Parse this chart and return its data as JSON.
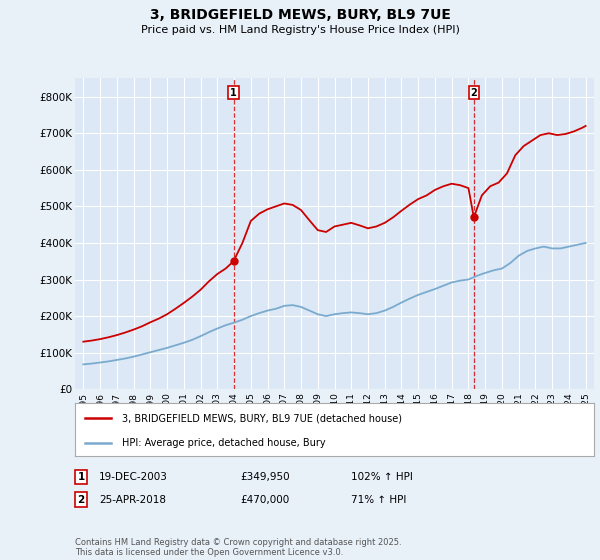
{
  "title": "3, BRIDGEFIELD MEWS, BURY, BL9 7UE",
  "subtitle": "Price paid vs. HM Land Registry's House Price Index (HPI)",
  "background_color": "#e8f0f8",
  "plot_background_color": "#dce8f5",
  "ylim": [
    0,
    850000
  ],
  "yticks": [
    0,
    100000,
    200000,
    300000,
    400000,
    500000,
    600000,
    700000,
    800000
  ],
  "ytick_labels": [
    "£0",
    "£100K",
    "£200K",
    "£300K",
    "£400K",
    "£500K",
    "£600K",
    "£700K",
    "£800K"
  ],
  "red_line_color": "#cc0000",
  "blue_line_color": "#7aabcf",
  "sale1_x": 2003.97,
  "sale1_y": 349950,
  "sale1_label": "1",
  "sale2_x": 2018.32,
  "sale2_y": 470000,
  "sale2_label": "2",
  "legend_red_label": "3, BRIDGEFIELD MEWS, BURY, BL9 7UE (detached house)",
  "legend_blue_label": "HPI: Average price, detached house, Bury",
  "table_entries": [
    {
      "num": "1",
      "date": "19-DEC-2003",
      "price": "£349,950",
      "hpi": "102% ↑ HPI"
    },
    {
      "num": "2",
      "date": "25-APR-2018",
      "price": "£470,000",
      "hpi": "71% ↑ HPI"
    }
  ],
  "footer": "Contains HM Land Registry data © Crown copyright and database right 2025.\nThis data is licensed under the Open Government Licence v3.0.",
  "red_x": [
    1995.0,
    1995.5,
    1996.0,
    1996.5,
    1997.0,
    1997.5,
    1998.0,
    1998.5,
    1999.0,
    1999.5,
    2000.0,
    2000.5,
    2001.0,
    2001.5,
    2002.0,
    2002.5,
    2003.0,
    2003.5,
    2003.97,
    2004.5,
    2005.0,
    2005.5,
    2006.0,
    2006.5,
    2007.0,
    2007.5,
    2008.0,
    2008.5,
    2009.0,
    2009.5,
    2010.0,
    2010.5,
    2011.0,
    2011.5,
    2012.0,
    2012.5,
    2013.0,
    2013.5,
    2014.0,
    2014.5,
    2015.0,
    2015.5,
    2016.0,
    2016.5,
    2017.0,
    2017.5,
    2018.0,
    2018.32,
    2018.8,
    2019.3,
    2019.8,
    2020.3,
    2020.8,
    2021.3,
    2021.8,
    2022.3,
    2022.8,
    2023.3,
    2023.8,
    2024.3,
    2024.8,
    2025.0
  ],
  "red_y": [
    130000,
    133000,
    137000,
    142000,
    148000,
    155000,
    163000,
    172000,
    183000,
    193000,
    205000,
    220000,
    236000,
    253000,
    272000,
    295000,
    315000,
    330000,
    349950,
    400000,
    460000,
    480000,
    492000,
    500000,
    508000,
    504000,
    490000,
    462000,
    435000,
    430000,
    445000,
    450000,
    455000,
    448000,
    440000,
    445000,
    455000,
    470000,
    488000,
    505000,
    520000,
    530000,
    545000,
    555000,
    562000,
    558000,
    550000,
    470000,
    530000,
    555000,
    565000,
    590000,
    640000,
    665000,
    680000,
    695000,
    700000,
    695000,
    698000,
    705000,
    715000,
    720000
  ],
  "blue_x": [
    1995.0,
    1995.5,
    1996.0,
    1996.5,
    1997.0,
    1997.5,
    1998.0,
    1998.5,
    1999.0,
    1999.5,
    2000.0,
    2000.5,
    2001.0,
    2001.5,
    2002.0,
    2002.5,
    2003.0,
    2003.5,
    2004.0,
    2004.5,
    2005.0,
    2005.5,
    2006.0,
    2006.5,
    2007.0,
    2007.5,
    2008.0,
    2008.5,
    2009.0,
    2009.5,
    2010.0,
    2010.5,
    2011.0,
    2011.5,
    2012.0,
    2012.5,
    2013.0,
    2013.5,
    2014.0,
    2014.5,
    2015.0,
    2015.5,
    2016.0,
    2016.5,
    2017.0,
    2017.5,
    2018.0,
    2018.5,
    2019.0,
    2019.5,
    2020.0,
    2020.5,
    2021.0,
    2021.5,
    2022.0,
    2022.5,
    2023.0,
    2023.5,
    2024.0,
    2024.5,
    2025.0
  ],
  "blue_y": [
    68000,
    70000,
    73000,
    76000,
    80000,
    84000,
    89000,
    95000,
    101000,
    107000,
    113000,
    120000,
    127000,
    135000,
    145000,
    156000,
    166000,
    175000,
    182000,
    190000,
    200000,
    208000,
    215000,
    220000,
    228000,
    230000,
    225000,
    215000,
    205000,
    200000,
    205000,
    208000,
    210000,
    208000,
    205000,
    208000,
    215000,
    225000,
    237000,
    248000,
    258000,
    266000,
    274000,
    283000,
    292000,
    297000,
    300000,
    310000,
    318000,
    325000,
    330000,
    345000,
    365000,
    378000,
    385000,
    390000,
    385000,
    385000,
    390000,
    395000,
    400000
  ],
  "xtick_years": [
    1995,
    1996,
    1997,
    1998,
    1999,
    2000,
    2001,
    2002,
    2003,
    2004,
    2005,
    2006,
    2007,
    2008,
    2009,
    2010,
    2011,
    2012,
    2013,
    2014,
    2015,
    2016,
    2017,
    2018,
    2019,
    2020,
    2021,
    2022,
    2023,
    2024,
    2025
  ],
  "xlim": [
    1994.5,
    2025.5
  ]
}
